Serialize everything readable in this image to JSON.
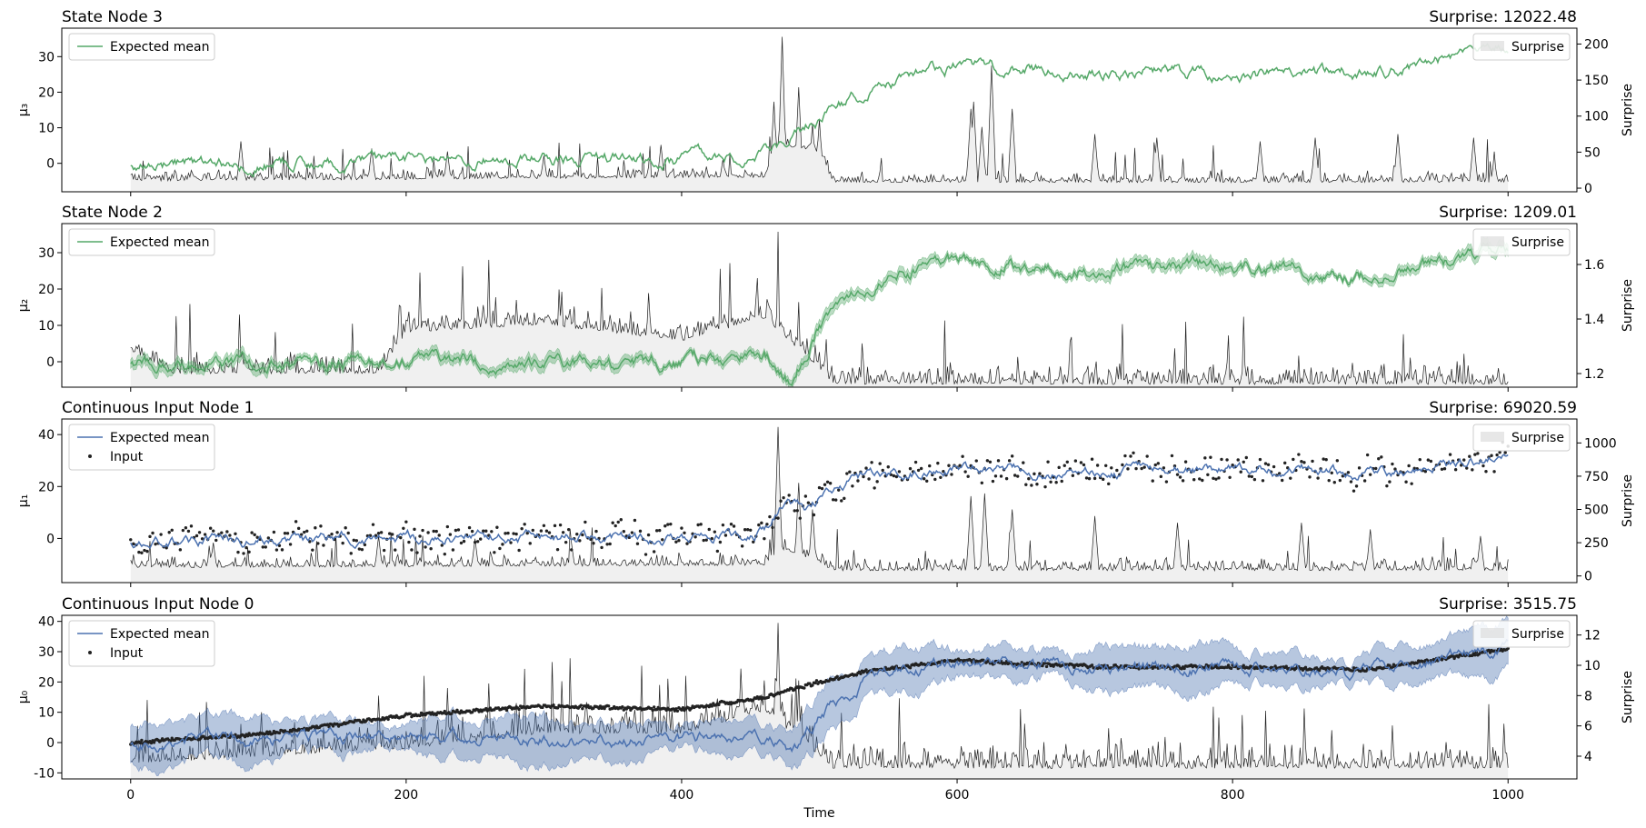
{
  "chart_data": [
    {
      "type": "line",
      "title": "State Node 3",
      "subtitle": "Surprise: 12022.48",
      "ylabel": "μ₃",
      "y2label": "Surprise",
      "xlim": [
        -50,
        1050
      ],
      "ylim": [
        -8,
        38
      ],
      "y2lim": [
        -5,
        222
      ],
      "yticks": [
        0,
        10,
        20,
        30
      ],
      "y2ticks": [
        0,
        50,
        100,
        150,
        200
      ],
      "xticks": [
        0,
        200,
        400,
        600,
        800,
        1000
      ],
      "legend": [
        "Expected mean"
      ],
      "legend2": [
        "Surprise"
      ],
      "legend_position": "top-left",
      "legend2_position": "top-right",
      "series_color": "#55a868",
      "band_width": 0,
      "has_input": false,
      "mean_trend": [
        [
          0,
          0
        ],
        [
          100,
          0
        ],
        [
          200,
          1
        ],
        [
          300,
          1
        ],
        [
          400,
          1
        ],
        [
          460,
          3
        ],
        [
          500,
          12
        ],
        [
          540,
          22
        ],
        [
          600,
          27
        ],
        [
          700,
          26
        ],
        [
          800,
          25
        ],
        [
          900,
          25
        ],
        [
          1000,
          32
        ]
      ],
      "mean_noise": 1.6,
      "surprise_trend": [
        [
          0,
          10
        ],
        [
          460,
          15
        ],
        [
          470,
          60
        ],
        [
          500,
          50
        ],
        [
          510,
          8
        ],
        [
          1000,
          8
        ]
      ],
      "surprise_spikes": [
        [
          80,
          65
        ],
        [
          175,
          55
        ],
        [
          230,
          50
        ],
        [
          300,
          45
        ],
        [
          385,
          60
        ],
        [
          430,
          40
        ],
        [
          467,
          120
        ],
        [
          473,
          210
        ],
        [
          485,
          140
        ],
        [
          495,
          90
        ],
        [
          500,
          95
        ],
        [
          610,
          110
        ],
        [
          612,
          120
        ],
        [
          618,
          85
        ],
        [
          625,
          170
        ],
        [
          640,
          110
        ],
        [
          700,
          75
        ],
        [
          745,
          70
        ],
        [
          820,
          65
        ],
        [
          860,
          70
        ],
        [
          920,
          75
        ],
        [
          975,
          70
        ],
        [
          990,
          40
        ]
      ],
      "surprise_noise": 6,
      "seed": 3
    },
    {
      "type": "line",
      "title": "State Node 2",
      "subtitle": "Surprise: 1209.01",
      "ylabel": "μ₂",
      "y2label": "Surprise",
      "xlim": [
        -50,
        1050
      ],
      "ylim": [
        -7,
        38
      ],
      "y2lim": [
        1.15,
        1.75
      ],
      "yticks": [
        0,
        10,
        20,
        30
      ],
      "y2ticks": [
        1.2,
        1.4,
        1.6
      ],
      "xticks": [
        0,
        200,
        400,
        600,
        800,
        1000
      ],
      "legend": [
        "Expected mean"
      ],
      "legend2": [
        "Surprise"
      ],
      "legend_position": "top-left",
      "legend2_position": "top-right",
      "series_color": "#55a868",
      "band_width": 1.2,
      "has_input": false,
      "mean_trend": [
        [
          0,
          0
        ],
        [
          100,
          -1
        ],
        [
          200,
          1
        ],
        [
          300,
          -1
        ],
        [
          400,
          0
        ],
        [
          460,
          2
        ],
        [
          480,
          -6
        ],
        [
          500,
          10
        ],
        [
          540,
          22
        ],
        [
          600,
          28
        ],
        [
          700,
          25
        ],
        [
          800,
          27
        ],
        [
          900,
          23
        ],
        [
          1000,
          31
        ]
      ],
      "mean_noise": 1.6,
      "surprise_trend": [
        [
          0,
          1.28
        ],
        [
          30,
          1.2
        ],
        [
          180,
          1.2
        ],
        [
          200,
          1.35
        ],
        [
          300,
          1.38
        ],
        [
          400,
          1.32
        ],
        [
          460,
          1.4
        ],
        [
          500,
          1.22
        ],
        [
          510,
          1.16
        ],
        [
          1000,
          1.16
        ]
      ],
      "surprise_spikes": [
        [
          195,
          1.45
        ],
        [
          265,
          1.48
        ],
        [
          280,
          1.47
        ],
        [
          455,
          1.55
        ],
        [
          470,
          1.72
        ],
        [
          610,
          1.2
        ],
        [
          810,
          1.19
        ]
      ],
      "surprise_noise": 0.03,
      "seed": 5
    },
    {
      "type": "scatter",
      "title": "Continuous Input Node 1",
      "subtitle": "Surprise: 69020.59",
      "ylabel": "μ₁",
      "y2label": "Surprise",
      "xlim": [
        -50,
        1050
      ],
      "ylim": [
        -17,
        46
      ],
      "y2lim": [
        -50,
        1180
      ],
      "yticks": [
        0,
        20,
        40
      ],
      "y2ticks": [
        0,
        250,
        500,
        750,
        1000
      ],
      "xticks": [
        0,
        200,
        400,
        600,
        800,
        1000
      ],
      "legend": [
        "Expected mean",
        "Input"
      ],
      "legend2": [
        "Surprise"
      ],
      "legend_position": "top-left",
      "legend2_position": "top-right",
      "series_color": "#4c72b0",
      "band_width": 0,
      "has_input": true,
      "input_spread": 5,
      "mean_trend": [
        [
          0,
          -1
        ],
        [
          100,
          -1
        ],
        [
          200,
          1
        ],
        [
          300,
          0
        ],
        [
          400,
          0
        ],
        [
          460,
          2
        ],
        [
          475,
          15
        ],
        [
          490,
          10
        ],
        [
          510,
          20
        ],
        [
          540,
          24
        ],
        [
          600,
          28
        ],
        [
          700,
          25
        ],
        [
          800,
          27
        ],
        [
          900,
          25
        ],
        [
          1000,
          31
        ]
      ],
      "mean_noise": 1.8,
      "surprise_trend": [
        [
          0,
          60
        ],
        [
          460,
          80
        ],
        [
          475,
          200
        ],
        [
          500,
          100
        ],
        [
          510,
          40
        ],
        [
          1000,
          40
        ]
      ],
      "surprise_spikes": [
        [
          60,
          250
        ],
        [
          180,
          300
        ],
        [
          250,
          280
        ],
        [
          320,
          250
        ],
        [
          470,
          1120
        ],
        [
          485,
          700
        ],
        [
          495,
          500
        ],
        [
          610,
          600
        ],
        [
          620,
          620
        ],
        [
          640,
          500
        ],
        [
          700,
          450
        ],
        [
          760,
          400
        ],
        [
          850,
          400
        ],
        [
          900,
          350
        ],
        [
          980,
          300
        ]
      ],
      "surprise_noise": 35,
      "seed": 7
    },
    {
      "type": "scatter",
      "title": "Continuous Input Node 0",
      "subtitle": "Surprise: 3515.75",
      "ylabel": "μ₀",
      "y2label": "Surprise",
      "xlim": [
        -50,
        1050
      ],
      "ylim": [
        -12,
        42
      ],
      "y2lim": [
        2.5,
        13.3
      ],
      "yticks": [
        -10,
        0,
        10,
        20,
        30,
        40
      ],
      "y2ticks": [
        4,
        6,
        8,
        10,
        12
      ],
      "xticks": [
        0,
        200,
        400,
        600,
        800,
        1000
      ],
      "xlabel": "Time",
      "legend": [
        "Expected mean",
        "Input"
      ],
      "legend2": [
        "Surprise"
      ],
      "legend_position": "top-left",
      "legend2_position": "top-right",
      "series_color": "#4c72b0",
      "band_width": 6,
      "has_input": true,
      "input_spread": 0.6,
      "input_trend": [
        [
          0,
          0
        ],
        [
          100,
          3
        ],
        [
          200,
          9
        ],
        [
          300,
          12
        ],
        [
          400,
          11
        ],
        [
          460,
          15
        ],
        [
          500,
          20
        ],
        [
          540,
          24
        ],
        [
          600,
          27
        ],
        [
          700,
          25
        ],
        [
          800,
          25
        ],
        [
          900,
          24
        ],
        [
          1000,
          31
        ]
      ],
      "mean_trend": [
        [
          0,
          0
        ],
        [
          100,
          0
        ],
        [
          200,
          2
        ],
        [
          300,
          1
        ],
        [
          400,
          1
        ],
        [
          460,
          3
        ],
        [
          480,
          -5
        ],
        [
          500,
          8
        ],
        [
          540,
          22
        ],
        [
          600,
          27
        ],
        [
          700,
          24
        ],
        [
          800,
          25
        ],
        [
          900,
          23
        ],
        [
          1000,
          31
        ]
      ],
      "mean_noise": 1.8,
      "surprise_trend": [
        [
          0,
          3.5
        ],
        [
          200,
          4.5
        ],
        [
          300,
          5.5
        ],
        [
          400,
          5.5
        ],
        [
          460,
          7
        ],
        [
          500,
          4
        ],
        [
          510,
          3.2
        ],
        [
          1000,
          3.2
        ]
      ],
      "surprise_spikes": [
        [
          180,
          8
        ],
        [
          230,
          8.5
        ],
        [
          260,
          8.8
        ],
        [
          280,
          7.5
        ],
        [
          330,
          7
        ],
        [
          460,
          9
        ],
        [
          470,
          12.8
        ],
        [
          485,
          9
        ],
        [
          495,
          6
        ],
        [
          610,
          4.2
        ],
        [
          810,
          3.8
        ]
      ],
      "surprise_noise": 0.6,
      "seed": 11
    }
  ]
}
